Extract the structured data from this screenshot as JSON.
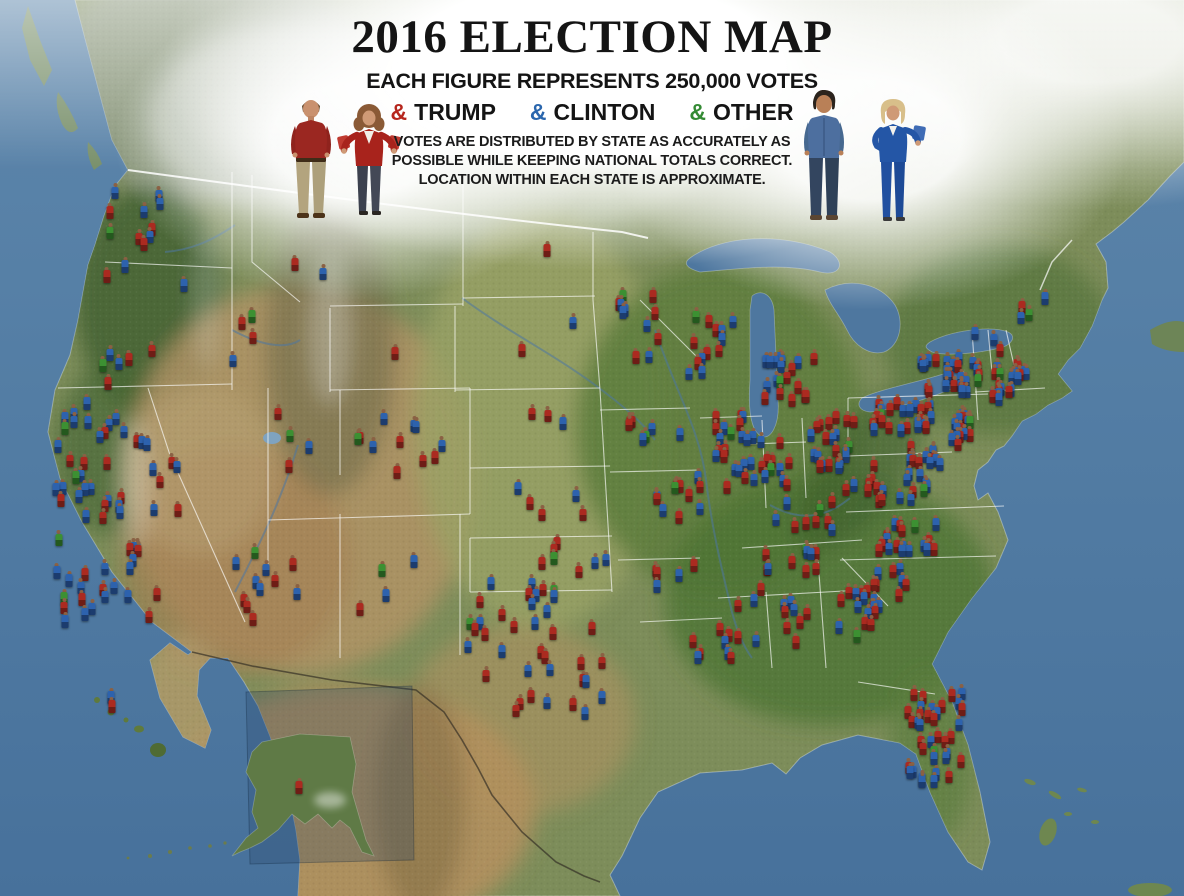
{
  "header": {
    "title": "2016 ELECTION MAP",
    "subtitle": "EACH FIGURE REPRESENTS 250,000 VOTES",
    "legend": [
      {
        "symbol": "&",
        "label": "TRUMP",
        "color": "#b6261d"
      },
      {
        "symbol": "&",
        "label": "CLINTON",
        "color": "#2a66ad"
      },
      {
        "symbol": "&",
        "label": "OTHER",
        "color": "#338a33"
      }
    ],
    "note_lines": [
      "VOTES ARE DISTRIBUTED BY STATE AS ACCURATELY AS",
      "POSSIBLE WHILE KEEPING NATIONAL TOTALS CORRECT.",
      "LOCATION WITHIN EACH STATE IS APPROXIMATE."
    ]
  },
  "chart_data": {
    "type": "pictogram-map",
    "unit_votes_per_figure": 250000,
    "series": [
      {
        "key": "t",
        "name": "TRUMP",
        "color": "#ab2a20"
      },
      {
        "key": "c",
        "name": "CLINTON",
        "color": "#2d62ad"
      },
      {
        "key": "o",
        "name": "OTHER",
        "color": "#3c9032"
      }
    ],
    "states": [
      {
        "id": "WA",
        "x": 12.2,
        "y": 27.3,
        "sx": 3.8,
        "sy": 5.6,
        "t": 5,
        "c": 7,
        "o": 1
      },
      {
        "id": "OR",
        "x": 9.7,
        "y": 43.0,
        "sx": 3.4,
        "sy": 5.0,
        "t": 3,
        "c": 4,
        "o": 1
      },
      {
        "id": "CA",
        "x": 9.3,
        "y": 58.6,
        "sx": 4.6,
        "sy": 11.7,
        "t": 18,
        "c": 35,
        "o": 4
      },
      {
        "id": "NV",
        "x": 14.8,
        "y": 53.6,
        "sx": 2.4,
        "sy": 5.0,
        "t": 2,
        "c": 2,
        "o": 0
      },
      {
        "id": "ID",
        "x": 19.8,
        "y": 36.8,
        "sx": 1.9,
        "sy": 4.5,
        "t": 2,
        "c": 1,
        "o": 1
      },
      {
        "id": "MT",
        "x": 24.9,
        "y": 29.2,
        "sx": 4.2,
        "sy": 2.5,
        "t": 1,
        "c": 1,
        "o": 0
      },
      {
        "id": "WY",
        "x": 33.1,
        "y": 37.4,
        "sx": 3.0,
        "sy": 2.8,
        "t": 1,
        "c": 0,
        "o": 0
      },
      {
        "id": "UT",
        "x": 23.8,
        "y": 50.2,
        "sx": 2.4,
        "sy": 3.9,
        "t": 2,
        "c": 1,
        "o": 1
      },
      {
        "id": "CO",
        "x": 33.8,
        "y": 50.4,
        "sx": 3.8,
        "sy": 3.1,
        "t": 5,
        "c": 5,
        "o": 1
      },
      {
        "id": "AZ",
        "x": 22.6,
        "y": 66.4,
        "sx": 3.2,
        "sy": 4.2,
        "t": 5,
        "c": 5,
        "o": 1
      },
      {
        "id": "NM",
        "x": 32.8,
        "y": 66.7,
        "sx": 2.7,
        "sy": 4.2,
        "t": 1,
        "c": 2,
        "o": 1
      },
      {
        "id": "ND",
        "x": 46.9,
        "y": 30.7,
        "sx": 3.0,
        "sy": 2.2,
        "t": 1,
        "c": 0,
        "o": 0
      },
      {
        "id": "SD",
        "x": 46.3,
        "y": 38.8,
        "sx": 3.0,
        "sy": 2.2,
        "t": 1,
        "c": 1,
        "o": 0
      },
      {
        "id": "NE",
        "x": 46.0,
        "y": 48.0,
        "sx": 3.4,
        "sy": 2.0,
        "t": 2,
        "c": 1,
        "o": 0
      },
      {
        "id": "KS",
        "x": 46.6,
        "y": 56.4,
        "sx": 3.4,
        "sy": 2.0,
        "t": 3,
        "c": 2,
        "o": 0
      },
      {
        "id": "OK",
        "x": 48.3,
        "y": 62.7,
        "sx": 3.4,
        "sy": 2.0,
        "t": 4,
        "c": 2,
        "o": 1
      },
      {
        "id": "TX",
        "x": 45.4,
        "y": 73.1,
        "sx": 5.9,
        "sy": 7.3,
        "t": 19,
        "c": 16,
        "o": 2
      },
      {
        "id": "MN",
        "x": 54.7,
        "y": 36.8,
        "sx": 2.5,
        "sy": 4.2,
        "t": 5,
        "c": 5,
        "o": 1
      },
      {
        "id": "IA",
        "x": 55.3,
        "y": 48.5,
        "sx": 2.7,
        "sy": 2.0,
        "t": 3,
        "c": 3,
        "o": 1
      },
      {
        "id": "MO",
        "x": 57.6,
        "y": 56.4,
        "sx": 2.7,
        "sy": 2.8,
        "t": 6,
        "c": 4,
        "o": 1
      },
      {
        "id": "AR",
        "x": 57.6,
        "y": 64.7,
        "sx": 2.2,
        "sy": 2.5,
        "t": 3,
        "c": 2,
        "o": 0
      },
      {
        "id": "LA",
        "x": 59.5,
        "y": 72.8,
        "sx": 2.4,
        "sy": 2.2,
        "t": 5,
        "c": 3,
        "o": 0
      },
      {
        "id": "WI",
        "x": 60.4,
        "y": 39.3,
        "sx": 2.2,
        "sy": 3.3,
        "t": 6,
        "c": 6,
        "o": 1
      },
      {
        "id": "IL",
        "x": 62.1,
        "y": 51.1,
        "sx": 1.7,
        "sy": 4.0,
        "t": 9,
        "c": 12,
        "o": 1
      },
      {
        "id": "MS",
        "x": 62.9,
        "y": 69.4,
        "sx": 1.5,
        "sy": 2.9,
        "t": 3,
        "c": 2,
        "o": 0
      },
      {
        "id": "MI",
        "x": 66.6,
        "y": 43.3,
        "sx": 2.2,
        "sy": 3.3,
        "t": 9,
        "c": 9,
        "o": 1
      },
      {
        "id": "IN",
        "x": 65.5,
        "y": 52.2,
        "sx": 1.4,
        "sy": 2.9,
        "t": 6,
        "c": 4,
        "o": 1
      },
      {
        "id": "KY",
        "x": 67.7,
        "y": 58.3,
        "sx": 2.7,
        "sy": 1.6,
        "t": 5,
        "c": 3,
        "o": 1
      },
      {
        "id": "TN",
        "x": 67.1,
        "y": 63.4,
        "sx": 3.0,
        "sy": 1.3,
        "t": 6,
        "c": 3,
        "o": 1
      },
      {
        "id": "AL",
        "x": 67.4,
        "y": 70.1,
        "sx": 1.5,
        "sy": 2.9,
        "t": 5,
        "c": 3,
        "o": 0
      },
      {
        "id": "OH",
        "x": 70.3,
        "y": 50.2,
        "sx": 1.9,
        "sy": 2.9,
        "t": 11,
        "c": 10,
        "o": 1
      },
      {
        "id": "GA",
        "x": 72.5,
        "y": 69.0,
        "sx": 2.0,
        "sy": 3.1,
        "t": 8,
        "c": 8,
        "o": 1
      },
      {
        "id": "FL",
        "x": 79.0,
        "y": 83.1,
        "sx": 2.4,
        "sy": 5.0,
        "t": 18,
        "c": 18,
        "o": 1
      },
      {
        "id": "SC",
        "x": 75.4,
        "y": 65.6,
        "sx": 1.7,
        "sy": 1.8,
        "t": 5,
        "c": 3,
        "o": 0
      },
      {
        "id": "NC",
        "x": 76.4,
        "y": 60.8,
        "sx": 2.7,
        "sy": 1.6,
        "t": 9,
        "c": 9,
        "o": 1
      },
      {
        "id": "VA",
        "x": 75.8,
        "y": 55.2,
        "sx": 2.5,
        "sy": 1.6,
        "t": 7,
        "c": 8,
        "o": 1
      },
      {
        "id": "WV",
        "x": 72.8,
        "y": 54.1,
        "sx": 1.4,
        "sy": 1.5,
        "t": 2,
        "c": 1,
        "o": 0
      },
      {
        "id": "MD",
        "x": 78.1,
        "y": 51.6,
        "sx": 1.5,
        "sy": 1.0,
        "t": 4,
        "c": 7,
        "o": 0
      },
      {
        "id": "DE",
        "x": 80.5,
        "y": 50.4,
        "sx": 0.5,
        "sy": 0.8,
        "t": 1,
        "c": 1,
        "o": 0
      },
      {
        "id": "PA",
        "x": 76.2,
        "y": 47.4,
        "sx": 2.5,
        "sy": 1.7,
        "t": 12,
        "c": 12,
        "o": 1
      },
      {
        "id": "NJ",
        "x": 81.3,
        "y": 48.5,
        "sx": 0.7,
        "sy": 1.5,
        "t": 6,
        "c": 9,
        "o": 1
      },
      {
        "id": "NY",
        "x": 80.1,
        "y": 42.7,
        "sx": 2.7,
        "sy": 2.0,
        "t": 11,
        "c": 18,
        "o": 1
      },
      {
        "id": "CT",
        "x": 83.9,
        "y": 44.6,
        "sx": 0.8,
        "sy": 0.8,
        "t": 3,
        "c": 4,
        "o": 0
      },
      {
        "id": "RI",
        "x": 85.5,
        "y": 44.1,
        "sx": 0.3,
        "sy": 0.6,
        "t": 1,
        "c": 1,
        "o": 0
      },
      {
        "id": "MA",
        "x": 85.3,
        "y": 42.2,
        "sx": 1.4,
        "sy": 0.8,
        "t": 4,
        "c": 8,
        "o": 1
      },
      {
        "id": "VT",
        "x": 82.6,
        "y": 38.8,
        "sx": 0.5,
        "sy": 1.1,
        "t": 0,
        "c": 1,
        "o": 0
      },
      {
        "id": "NH",
        "x": 84.3,
        "y": 39.1,
        "sx": 0.5,
        "sy": 1.1,
        "t": 1,
        "c": 1,
        "o": 0
      },
      {
        "id": "ME",
        "x": 87.4,
        "y": 34.4,
        "sx": 1.2,
        "sy": 2.7,
        "t": 1,
        "c": 2,
        "o": 1
      },
      {
        "id": "DC",
        "x": 78.5,
        "y": 52.5,
        "sx": 0.2,
        "sy": 0.2,
        "t": 0,
        "c": 1,
        "o": 0
      },
      {
        "id": "AK",
        "x": 25.5,
        "y": 88.4,
        "sx": 0.5,
        "sy": 1.1,
        "t": 1,
        "c": 0,
        "o": 0
      },
      {
        "id": "HI",
        "x": 9.5,
        "y": 78.9,
        "sx": 0.2,
        "sy": 0.8,
        "t": 1,
        "c": 1,
        "o": 0
      }
    ]
  }
}
